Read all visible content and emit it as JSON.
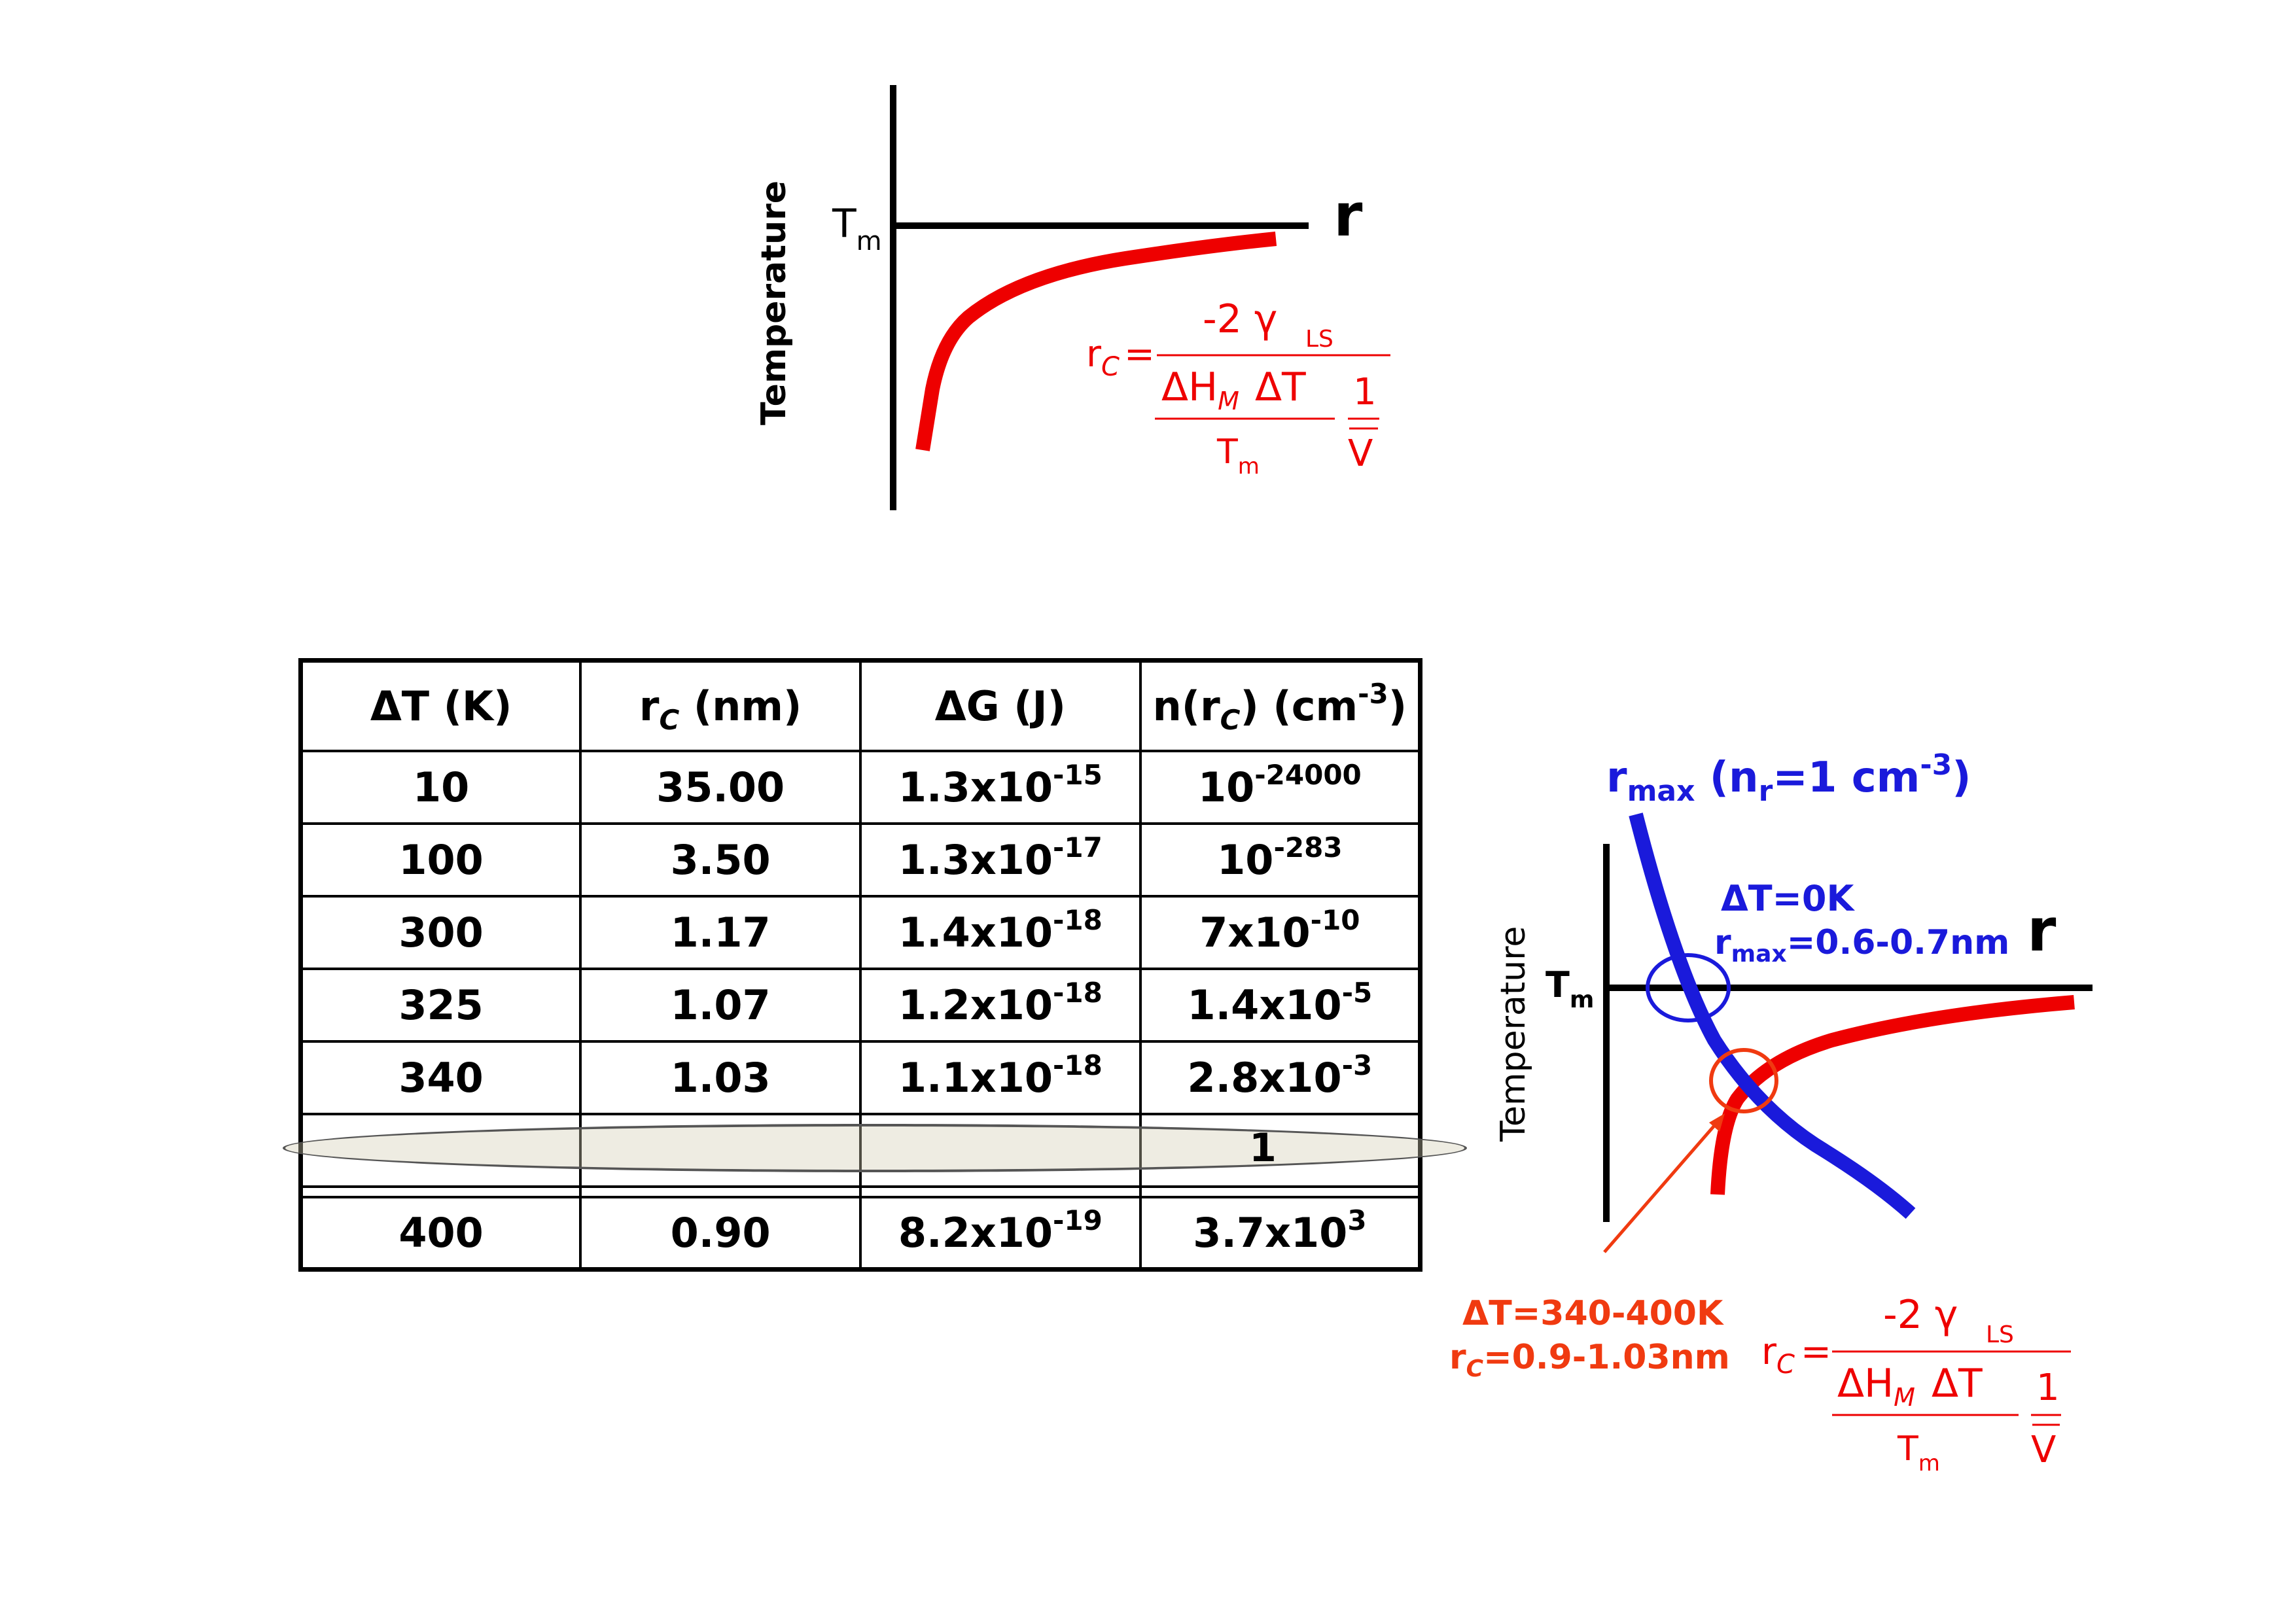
{
  "top_diagram": {
    "y_label": "Temperature",
    "tm_main": "T",
    "tm_sub": "m",
    "r_label": "r",
    "formula": {
      "lhs_main": "r",
      "lhs_sub": "C",
      "eq": "=",
      "numerator": "-2 γ",
      "numerator_sub": "LS",
      "den_a": "ΔH",
      "den_a_sub": "M",
      "den_b": "ΔT",
      "den_c_main": "T",
      "den_c_sub": "m",
      "one": "1",
      "vbar": "V"
    }
  },
  "table": {
    "headers": [
      {
        "main": "ΔT (K)"
      },
      {
        "pre": "r",
        "sub": "C",
        "post": " (nm)"
      },
      {
        "main": "ΔG (J)"
      },
      {
        "pre": "n(r",
        "sub": "C",
        "mid": ") (cm",
        "sup": "-3",
        "post": ")"
      }
    ],
    "rows": [
      {
        "dt": "10",
        "rc": "35.00",
        "dg_base": "1.3x10",
        "dg_exp": "-15",
        "n_base": "10",
        "n_exp": "-24000"
      },
      {
        "dt": "100",
        "rc": "3.50",
        "dg_base": "1.3x10",
        "dg_exp": "-17",
        "n_base": "10",
        "n_exp": "-283"
      },
      {
        "dt": "300",
        "rc": "1.17",
        "dg_base": "1.4x10",
        "dg_exp": "-18",
        "n_base": "7x10",
        "n_exp": "-10"
      },
      {
        "dt": "325",
        "rc": "1.07",
        "dg_base": "1.2x10",
        "dg_exp": "-18",
        "n_base": "1.4x10",
        "n_exp": "-5"
      },
      {
        "dt": "340",
        "rc": "1.03",
        "dg_base": "1.1x10",
        "dg_exp": "-18",
        "n_base": "2.8x10",
        "n_exp": "-3"
      }
    ],
    "highlight_value": "1",
    "last_row": {
      "dt": "400",
      "rc": "0.90",
      "dg_base": "8.2x10",
      "dg_exp": "-19",
      "n_base": "3.7x10",
      "n_exp": "3"
    }
  },
  "right_diagram": {
    "rmax_title_r": "r",
    "rmax_title_sub": "max",
    "rmax_title_open": " (n",
    "rmax_title_sub2": "r",
    "rmax_title_eq": "=1  cm",
    "rmax_title_sup": "-3",
    "rmax_title_close": ")",
    "dt0_label": "ΔT=0K",
    "rmax_val_r": "r",
    "rmax_val_sub": "max",
    "rmax_val_text": "=0.6-0.7nm",
    "r_label": "r",
    "y_label": "Temperature",
    "tm_main": "T",
    "tm_sub": "m",
    "dt_range": "ΔT=340-400K",
    "rc_range_r": "r",
    "rc_range_sub": "C",
    "rc_range_text": "=0.9-1.03nm",
    "formula": {
      "lhs_main": "r",
      "lhs_sub": "C",
      "eq": "=",
      "numerator": "-2 γ",
      "numerator_sub": "LS",
      "den_a": "ΔH",
      "den_a_sub": "M",
      "den_b": "ΔT",
      "den_c_main": "T",
      "den_c_sub": "m",
      "one": "1",
      "vbar": "V"
    },
    "colors": {
      "rc_curve": "#ee0000",
      "rmax_curve": "#1a1adb",
      "annotation": "#f03a10"
    }
  }
}
